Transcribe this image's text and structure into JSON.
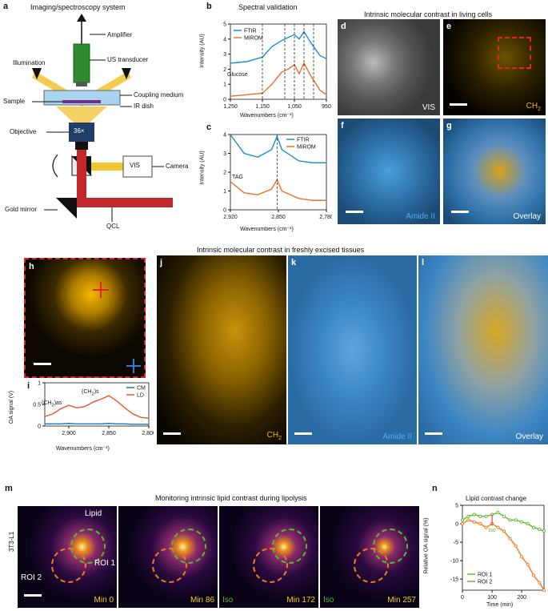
{
  "panel_labels": {
    "a": "a",
    "b": "b",
    "c": "c",
    "d": "d",
    "e": "e",
    "f": "f",
    "g": "g",
    "h": "h",
    "i": "i",
    "j": "j",
    "k": "k",
    "l": "l",
    "m": "m",
    "n": "n"
  },
  "a": {
    "title": "Imaging/spectroscopy system",
    "amplifier": "Amplifier",
    "us_transducer": "US transducer",
    "illumination": "Illumination",
    "coupling_medium": "Coupling medium",
    "sample": "Sample",
    "ir_dish": "IR dish",
    "objective_mag": "36×",
    "objective": "Objective",
    "camera": "Camera",
    "vis": "VIS",
    "gold_mirror": "Gold mirror",
    "qcl": "QCL"
  },
  "b": {
    "title": "Spectral validation",
    "ylabel": "Intensity (AU)",
    "xlabel": "Wavenumbers (cm⁻¹)",
    "annotation": "Glucose",
    "legend": [
      "FTIR",
      "MiROM"
    ],
    "xticks": [
      "1,250",
      "1,150",
      "1,050",
      "950"
    ],
    "yticks": [
      "0",
      "1",
      "2",
      "3",
      "4",
      "5"
    ]
  },
  "c": {
    "ylabel": "Intensity (AU)",
    "xlabel": "Wavenumbers (cm⁻¹)",
    "annotation": "TAG",
    "legend": [
      "FTIR",
      "MiROM"
    ],
    "xticks": [
      "2,920",
      "2,850",
      "2,780"
    ],
    "yticks": [
      "0",
      "1",
      "2",
      "3",
      "4"
    ]
  },
  "cells_title": "Intrinsic molecular contrast in living cells",
  "d_label": "VIS",
  "e_label_base": "CH",
  "e_label_sub": "2",
  "f_label": "Amide II",
  "g_label": "Overlay",
  "tissues_title": "Intrinsic molecular contrast in freshly excised tissues",
  "i": {
    "ylabel": "OA signal (V)",
    "xlabel": "Wavenumbers (cm⁻¹)",
    "yticks": [
      "0",
      "0.5",
      "1"
    ],
    "xticks": [
      "2,900",
      "2,850",
      "2,800"
    ],
    "legend": [
      "CM",
      "LD"
    ],
    "peak1_base": "(CH",
    "peak1_sub": "2",
    "peak1_tail": ")as",
    "peak2_base": "(CH",
    "peak2_sub": "2",
    "peak2_tail": ")s"
  },
  "j_label_base": "CH",
  "j_label_sub": "2",
  "k_label": "Amide II",
  "l_label": "Overlay",
  "m": {
    "title": "Monitoring intrinsic lipid contrast during lipolysis",
    "side_label": "3T3-L1",
    "lipid": "Lipid",
    "roi1": "ROI 1",
    "roi2": "ROI 2",
    "frames": [
      "Min 0",
      "Min 86",
      "Min 172",
      "Min 257"
    ],
    "iso": "Iso"
  },
  "n": {
    "title": "Lipid contrast change",
    "ylabel": "Relative OA signal (%)",
    "xlabel": "Time (min)",
    "yticks": [
      "5",
      "0",
      "-5",
      "-10",
      "-15"
    ],
    "xticks": [
      "0",
      "100",
      "200"
    ],
    "iso": "Iso",
    "legend": [
      "ROI 1",
      "ROI 2"
    ]
  },
  "colors": {
    "ftir": "#1f8fc9",
    "miromm": "#e8702a",
    "roi1": "#5db82e",
    "roi2": "#f07a1e",
    "cm": "#1f77b4",
    "ld": "#e8562a"
  },
  "chart_data": [
    {
      "type": "line",
      "panel": "b",
      "x": [
        1250,
        1200,
        1150,
        1120,
        1090,
        1070,
        1050,
        1035,
        1020,
        1000,
        970,
        950
      ],
      "series": [
        {
          "name": "FTIR",
          "values": [
            2.4,
            2.5,
            2.8,
            3.5,
            3.9,
            4.1,
            4.3,
            4.0,
            4.5,
            3.8,
            2.9,
            2.7
          ]
        },
        {
          "name": "MiROM",
          "values": [
            0.2,
            0.3,
            0.4,
            1.0,
            1.8,
            2.0,
            2.3,
            1.7,
            2.4,
            1.6,
            0.6,
            0.3
          ]
        }
      ],
      "xlim": [
        1250,
        950
      ],
      "ylim": [
        0,
        5
      ],
      "annotations": [
        "Glucose"
      ]
    },
    {
      "type": "line",
      "panel": "c",
      "x": [
        2920,
        2900,
        2880,
        2860,
        2852,
        2845,
        2820,
        2800,
        2780
      ],
      "series": [
        {
          "name": "FTIR",
          "values": [
            4.0,
            3.0,
            2.8,
            3.2,
            3.9,
            3.2,
            2.6,
            2.5,
            2.5
          ]
        },
        {
          "name": "MiROM",
          "values": [
            1.5,
            0.9,
            0.8,
            1.1,
            1.6,
            1.0,
            0.6,
            0.5,
            0.5
          ]
        }
      ],
      "xlim": [
        2920,
        2780
      ],
      "ylim": [
        0,
        4
      ],
      "annotations": [
        "TAG"
      ]
    },
    {
      "type": "line",
      "panel": "i",
      "x": [
        2930,
        2920,
        2910,
        2900,
        2890,
        2880,
        2870,
        2860,
        2850,
        2840,
        2830,
        2820,
        2810,
        2800
      ],
      "series": [
        {
          "name": "CM",
          "values": [
            0.05,
            0.05,
            0.05,
            0.06,
            0.05,
            0.05,
            0.05,
            0.05,
            0.06,
            0.05,
            0.05,
            0.04,
            0.04,
            0.04
          ]
        },
        {
          "name": "LD",
          "values": [
            0.22,
            0.28,
            0.4,
            0.48,
            0.42,
            0.45,
            0.55,
            0.62,
            0.7,
            0.58,
            0.42,
            0.28,
            0.2,
            0.18
          ]
        }
      ],
      "xlim": [
        2930,
        2800
      ],
      "ylim": [
        0,
        1
      ]
    },
    {
      "type": "line",
      "panel": "n",
      "x": [
        0,
        20,
        40,
        60,
        80,
        100,
        120,
        140,
        160,
        180,
        200,
        220,
        240,
        260,
        275
      ],
      "series": [
        {
          "name": "ROI 1",
          "values": [
            1,
            2,
            2.5,
            2,
            2,
            2.5,
            3,
            2,
            1,
            1,
            0.5,
            0,
            -1,
            -1.5,
            -2
          ]
        },
        {
          "name": "ROI 2",
          "values": [
            0,
            1,
            0.5,
            0,
            -1,
            0,
            -1,
            -2,
            -4,
            -6,
            -9,
            -11,
            -14,
            -16,
            -18
          ]
        }
      ],
      "xlim": [
        0,
        275
      ],
      "ylim": [
        -18,
        5
      ],
      "annotations": [
        "Iso"
      ]
    }
  ]
}
